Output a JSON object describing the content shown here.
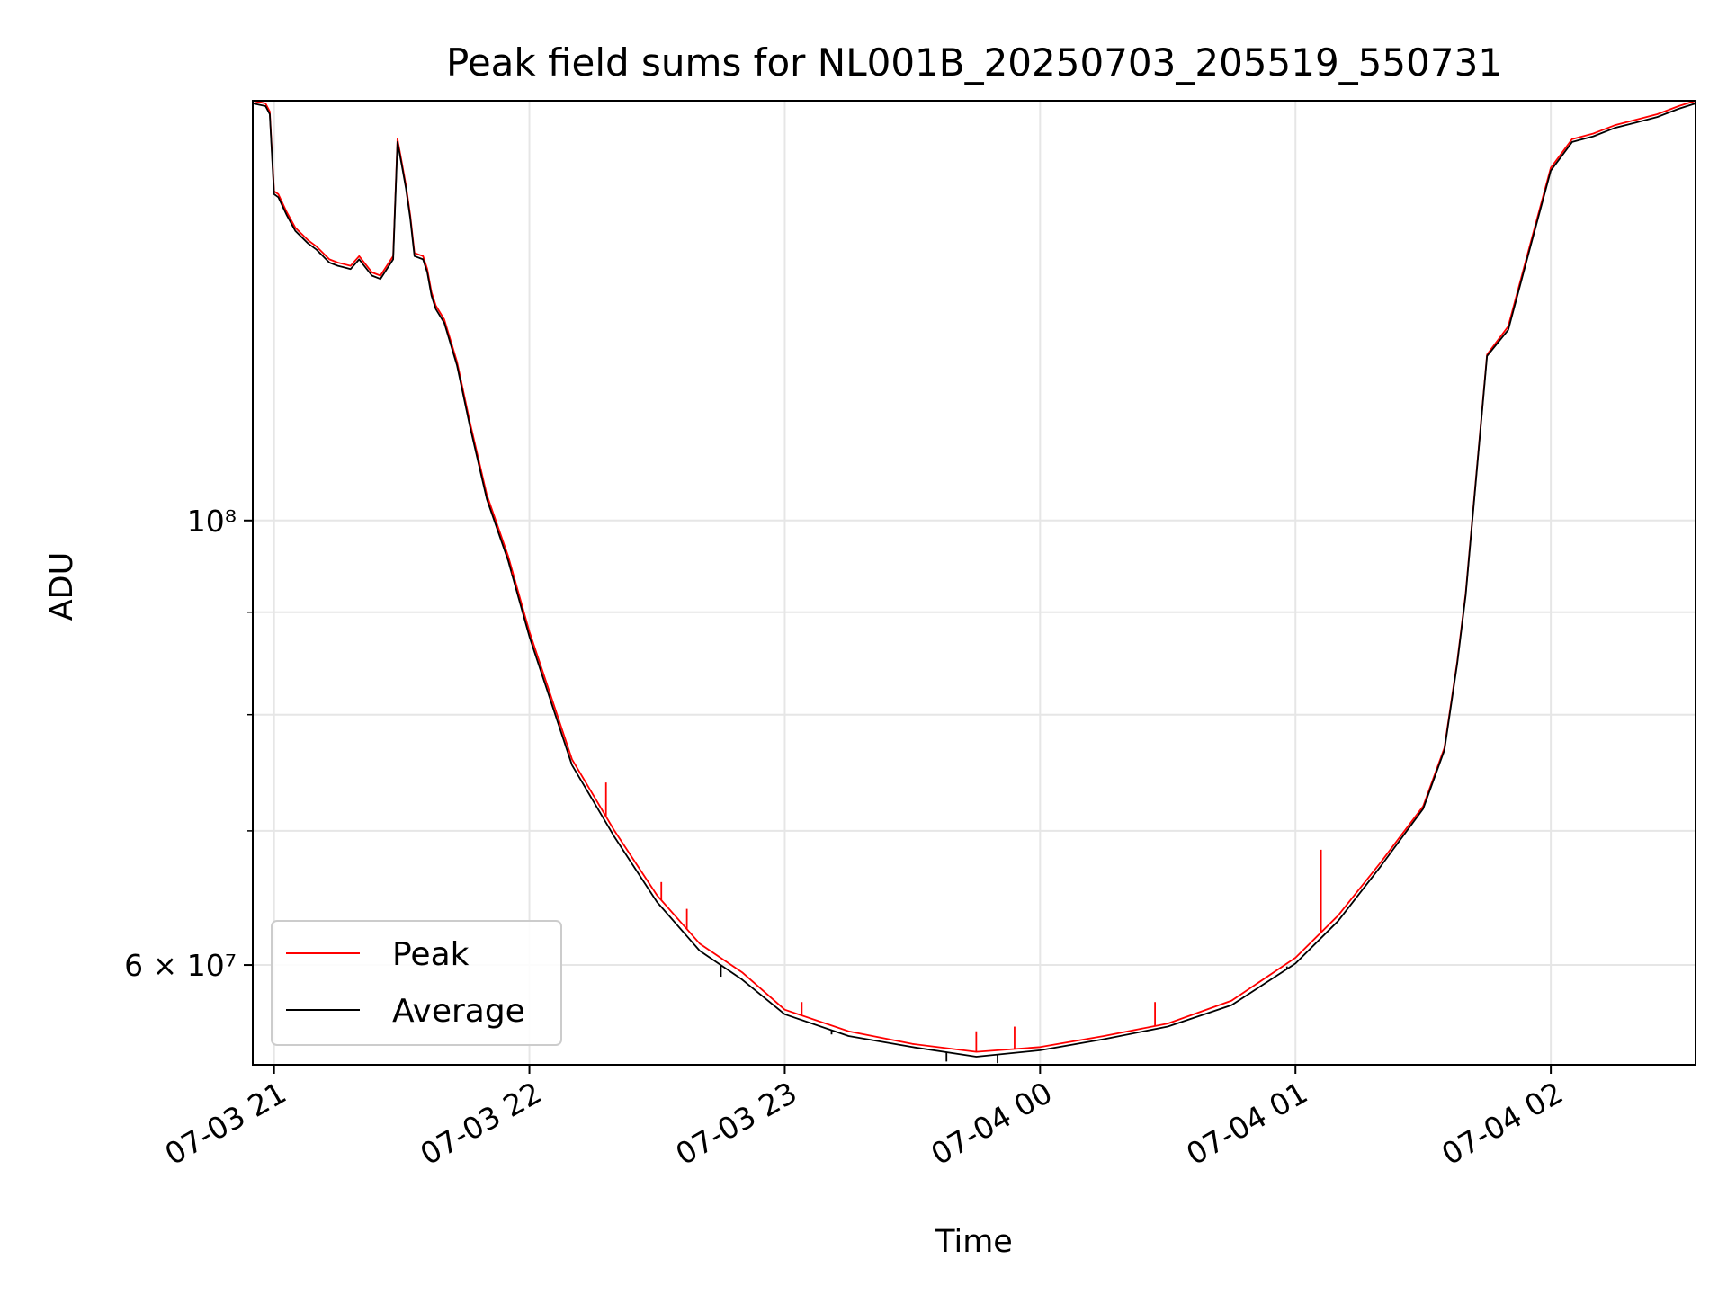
{
  "colors": {
    "peak": "#ff0000",
    "average": "#000000",
    "grid": "#e6e6e6",
    "axes": "#000000",
    "background": "#ffffff"
  },
  "chart_data": {
    "type": "line",
    "title": "Peak field sums for NL001B_20250703_205519_550731",
    "xlabel": "Time",
    "ylabel": "ADU",
    "yscale": "log",
    "grid": true,
    "legend_position": "bottom-left",
    "xlim": [
      "2025-07-03 20:55",
      "2025-07-04 02:34"
    ],
    "ylim": [
      53500000,
      162000000
    ],
    "xticks": [
      {
        "x": "2025-07-03 21:00",
        "label": "07-03 21"
      },
      {
        "x": "2025-07-03 22:00",
        "label": "07-03 22"
      },
      {
        "x": "2025-07-03 23:00",
        "label": "07-03 23"
      },
      {
        "x": "2025-07-04 00:00",
        "label": "07-04 00"
      },
      {
        "x": "2025-07-04 01:00",
        "label": "07-04 01"
      },
      {
        "x": "2025-07-04 02:00",
        "label": "07-04 02"
      }
    ],
    "yticks_major": [
      {
        "y": 60000000,
        "label": "6 × 10⁷"
      },
      {
        "y": 100000000,
        "label": "10⁸"
      }
    ],
    "yticks_minor": [
      70000000,
      80000000,
      90000000
    ],
    "x": [
      "2025-07-03 20:55",
      "2025-07-03 20:58",
      "2025-07-03 20:59",
      "2025-07-03 21:00",
      "2025-07-03 21:01",
      "2025-07-03 21:03",
      "2025-07-03 21:05",
      "2025-07-03 21:08",
      "2025-07-03 21:10",
      "2025-07-03 21:13",
      "2025-07-03 21:15",
      "2025-07-03 21:18",
      "2025-07-03 21:20",
      "2025-07-03 21:23",
      "2025-07-03 21:25",
      "2025-07-03 21:27",
      "2025-07-03 21:28",
      "2025-07-03 21:29",
      "2025-07-03 21:30",
      "2025-07-03 21:31",
      "2025-07-03 21:32",
      "2025-07-03 21:33",
      "2025-07-03 21:35",
      "2025-07-03 21:36",
      "2025-07-03 21:37",
      "2025-07-03 21:38",
      "2025-07-03 21:40",
      "2025-07-03 21:43",
      "2025-07-03 21:46",
      "2025-07-03 21:50",
      "2025-07-03 21:55",
      "2025-07-03 22:00",
      "2025-07-03 22:10",
      "2025-07-03 22:20",
      "2025-07-03 22:30",
      "2025-07-03 22:40",
      "2025-07-03 22:50",
      "2025-07-03 23:00",
      "2025-07-03 23:15",
      "2025-07-03 23:30",
      "2025-07-03 23:45",
      "2025-07-04 00:00",
      "2025-07-04 00:15",
      "2025-07-04 00:30",
      "2025-07-04 00:45",
      "2025-07-04 01:00",
      "2025-07-04 01:10",
      "2025-07-04 01:20",
      "2025-07-04 01:30",
      "2025-07-04 01:35",
      "2025-07-04 01:38",
      "2025-07-04 01:40",
      "2025-07-04 01:45",
      "2025-07-04 01:50",
      "2025-07-04 01:55",
      "2025-07-04 02:00",
      "2025-07-04 02:05",
      "2025-07-04 02:10",
      "2025-07-04 02:15",
      "2025-07-04 02:20",
      "2025-07-04 02:25",
      "2025-07-04 02:30",
      "2025-07-04 02:34"
    ],
    "series": [
      {
        "name": "Peak",
        "color": "#ff0000",
        "values": [
          162000000,
          161500000,
          160000000,
          146000000,
          145500000,
          142500000,
          140000000,
          138000000,
          137000000,
          135000000,
          134500000,
          134000000,
          135500000,
          133000000,
          132500000,
          134500000,
          135500000,
          155000000,
          151000000,
          147000000,
          142000000,
          136000000,
          135500000,
          133500000,
          130000000,
          128000000,
          126000000,
          120000000,
          112000000,
          103000000,
          96000000,
          88000000,
          76000000,
          70000000,
          65000000,
          61500000,
          59500000,
          57000000,
          55600000,
          54800000,
          54300000,
          54600000,
          55300000,
          56100000,
          57600000,
          60500000,
          63500000,
          67500000,
          72000000,
          77000000,
          85000000,
          92000000,
          121000000,
          125000000,
          137000000,
          150000000,
          155000000,
          156000000,
          157500000,
          158500000,
          159500000,
          161000000,
          162000000
        ]
      },
      {
        "name": "Average",
        "color": "#000000",
        "values": [
          161500000,
          161000000,
          159500000,
          145500000,
          145000000,
          142000000,
          139500000,
          137500000,
          136500000,
          134500000,
          134000000,
          133500000,
          135000000,
          132500000,
          132000000,
          134000000,
          135000000,
          154500000,
          150500000,
          146500000,
          141500000,
          135500000,
          135000000,
          133000000,
          129500000,
          127500000,
          125500000,
          119500000,
          111500000,
          102500000,
          95500000,
          87500000,
          75500000,
          69500000,
          64500000,
          61000000,
          59000000,
          56700000,
          55300000,
          54600000,
          54000000,
          54400000,
          55100000,
          55900000,
          57300000,
          60100000,
          63100000,
          67200000,
          71800000,
          76800000,
          84800000,
          91800000,
          120800000,
          124500000,
          136500000,
          149500000,
          154500000,
          155500000,
          157000000,
          158000000,
          159000000,
          160500000,
          161500000
        ]
      }
    ],
    "peak_spikes": [
      {
        "x": "2025-07-03 21:56",
        "y": 94000000
      },
      {
        "x": "2025-07-03 22:18",
        "y": 74000000
      },
      {
        "x": "2025-07-03 22:31",
        "y": 66000000
      },
      {
        "x": "2025-07-03 22:37",
        "y": 64000000
      },
      {
        "x": "2025-07-03 23:04",
        "y": 57500000
      },
      {
        "x": "2025-07-03 23:45",
        "y": 55600000
      },
      {
        "x": "2025-07-03 23:54",
        "y": 55900000
      },
      {
        "x": "2025-07-04 00:27",
        "y": 57500000
      },
      {
        "x": "2025-07-04 01:06",
        "y": 68500000
      }
    ],
    "average_dips": [
      {
        "x": "2025-07-03 22:45",
        "y": 59200000
      },
      {
        "x": "2025-07-03 23:02",
        "y": 56500000
      },
      {
        "x": "2025-07-03 23:11",
        "y": 55400000
      },
      {
        "x": "2025-07-03 23:38",
        "y": 53700000
      },
      {
        "x": "2025-07-03 23:50",
        "y": 53600000
      },
      {
        "x": "2025-07-04 00:58",
        "y": 59900000
      }
    ],
    "legend": [
      {
        "label": "Peak",
        "color": "#ff0000"
      },
      {
        "label": "Average",
        "color": "#000000"
      }
    ]
  }
}
